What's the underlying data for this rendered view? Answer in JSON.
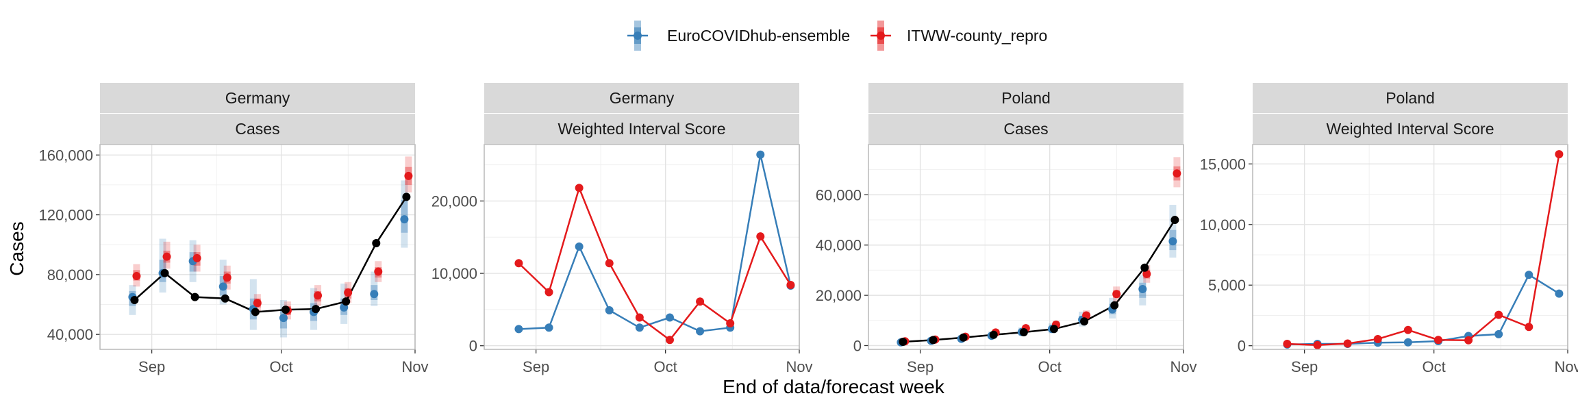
{
  "legend": {
    "placement": "top",
    "items": [
      {
        "name": "EuroCOVIDhub-ensemble",
        "color": "#377EB8"
      },
      {
        "name": "ITWW-county_repro",
        "color": "#E41A1C"
      }
    ]
  },
  "x_axis_title": "End of data/forecast week",
  "observed_color": "#000000",
  "chart_data": [
    {
      "type": "line",
      "strip_top": "Germany",
      "strip_bottom": "Cases",
      "ylabel": "Cases",
      "ylim": [
        30000,
        167000
      ],
      "yticks": [
        40000,
        80000,
        120000,
        160000
      ],
      "ytick_labels": [
        "40,000",
        "80,000",
        "120,000",
        "160,000"
      ],
      "x_dates": [
        "2021-08-28",
        "2021-09-04",
        "2021-09-11",
        "2021-09-18",
        "2021-09-25",
        "2021-10-02",
        "2021-10-09",
        "2021-10-16",
        "2021-10-23",
        "2021-10-30"
      ],
      "xlim": [
        "2021-08-20",
        "2021-11-01"
      ],
      "xticks": [
        "2021-09-01",
        "2021-10-01",
        "2021-11-01"
      ],
      "xtick_labels": [
        "Sep",
        "Oct",
        "Nov"
      ],
      "grid": true,
      "observed": [
        63000,
        81000,
        65000,
        64000,
        55000,
        56500,
        57000,
        62000,
        101000,
        132000
      ],
      "series": [
        {
          "name": "EuroCOVIDhub-ensemble",
          "median": [
            65000,
            81000,
            89000,
            72000,
            57000,
            51000,
            55000,
            58000,
            67000,
            117000
          ],
          "lower90": [
            53000,
            68000,
            75000,
            60000,
            43000,
            38000,
            43000,
            47000,
            59000,
            98000
          ],
          "upper90": [
            73000,
            104000,
            103000,
            90000,
            77000,
            63000,
            71000,
            74000,
            82000,
            143000
          ],
          "lower50": [
            59000,
            75000,
            82000,
            66000,
            50000,
            44000,
            49000,
            53000,
            63000,
            108000
          ],
          "upper50": [
            69000,
            90000,
            95000,
            79000,
            64000,
            57000,
            61000,
            64000,
            73000,
            130000
          ]
        },
        {
          "name": "ITWW-county_repro",
          "median": [
            79000,
            92000,
            91000,
            78000,
            61000,
            56000,
            66000,
            68000,
            82000,
            146000
          ],
          "lower90": [
            72000,
            84000,
            82000,
            70000,
            55000,
            50000,
            59000,
            61000,
            75000,
            135000
          ],
          "upper90": [
            87000,
            102000,
            100000,
            86000,
            67000,
            62000,
            73000,
            75000,
            89000,
            159000
          ],
          "lower50": [
            76000,
            88000,
            86000,
            74000,
            58000,
            53000,
            62000,
            64000,
            78000,
            140000
          ],
          "upper50": [
            83000,
            96000,
            95000,
            82000,
            64000,
            59000,
            69000,
            71000,
            85000,
            152000
          ]
        }
      ]
    },
    {
      "type": "line",
      "strip_top": "Germany",
      "strip_bottom": "Weighted Interval Score",
      "ylabel": "",
      "ylim": [
        -500,
        27800
      ],
      "yticks": [
        0,
        10000,
        20000
      ],
      "ytick_labels": [
        "0",
        "10,000",
        "20,000"
      ],
      "x_dates": [
        "2021-08-28",
        "2021-09-04",
        "2021-09-11",
        "2021-09-18",
        "2021-09-25",
        "2021-10-02",
        "2021-10-09",
        "2021-10-16",
        "2021-10-23",
        "2021-10-30"
      ],
      "xlim": [
        "2021-08-20",
        "2021-11-01"
      ],
      "xticks": [
        "2021-09-01",
        "2021-10-01",
        "2021-11-01"
      ],
      "xtick_labels": [
        "Sep",
        "Oct",
        "Nov"
      ],
      "grid": true,
      "series": [
        {
          "name": "EuroCOVIDhub-ensemble",
          "values": [
            2300,
            2500,
            13700,
            4900,
            2500,
            3900,
            2000,
            2500,
            26400,
            8300
          ]
        },
        {
          "name": "ITWW-county_repro",
          "values": [
            11400,
            7400,
            21800,
            11400,
            3900,
            800,
            6100,
            3100,
            15100,
            8400
          ]
        }
      ]
    },
    {
      "type": "line",
      "strip_top": "Poland",
      "strip_bottom": "Cases",
      "ylabel": "",
      "ylim": [
        -1500,
        80000
      ],
      "yticks": [
        0,
        20000,
        40000,
        60000
      ],
      "ytick_labels": [
        "0",
        "20,000",
        "40,000",
        "60,000"
      ],
      "x_dates": [
        "2021-08-28",
        "2021-09-04",
        "2021-09-11",
        "2021-09-18",
        "2021-09-25",
        "2021-10-02",
        "2021-10-09",
        "2021-10-16",
        "2021-10-23",
        "2021-10-30"
      ],
      "xlim": [
        "2021-08-20",
        "2021-11-01"
      ],
      "xticks": [
        "2021-09-01",
        "2021-10-01",
        "2021-11-01"
      ],
      "xtick_labels": [
        "Sep",
        "Oct",
        "Nov"
      ],
      "grid": true,
      "observed": [
        1500,
        2200,
        3200,
        4300,
        5300,
        6600,
        9600,
        16000,
        31000,
        50000
      ],
      "series": [
        {
          "name": "EuroCOVIDhub-ensemble",
          "median": [
            1300,
            1900,
            2700,
            3900,
            5400,
            6600,
            10300,
            14400,
            22500,
            41500
          ],
          "lower90": [
            700,
            1100,
            1700,
            2700,
            3900,
            4900,
            7600,
            10800,
            16000,
            35000
          ],
          "upper90": [
            2200,
            3000,
            4000,
            5600,
            7200,
            8800,
            13500,
            19000,
            28000,
            56000
          ],
          "lower50": [
            1000,
            1500,
            2200,
            3300,
            4600,
            5700,
            8900,
            12500,
            19000,
            38000
          ],
          "upper50": [
            1700,
            2400,
            3300,
            4700,
            6300,
            7600,
            11800,
            16600,
            25000,
            46000
          ]
        },
        {
          "name": "ITWW-county_repro",
          "median": [
            1700,
            2400,
            3500,
            5200,
            6900,
            8300,
            12000,
            20500,
            28500,
            68500
          ],
          "lower90": [
            1200,
            1700,
            2600,
            4000,
            5500,
            6700,
            10000,
            17500,
            25000,
            63000
          ],
          "upper90": [
            2300,
            3100,
            4400,
            6400,
            8300,
            9900,
            14000,
            23500,
            32000,
            75000
          ],
          "lower50": [
            1450,
            2050,
            3050,
            4600,
            6200,
            7500,
            11000,
            19000,
            26700,
            65700
          ],
          "upper50": [
            2000,
            2750,
            3950,
            5800,
            7600,
            9100,
            13000,
            22000,
            30200,
            71300
          ]
        }
      ]
    },
    {
      "type": "line",
      "strip_top": "Poland",
      "strip_bottom": "Weighted Interval Score",
      "ylabel": "",
      "ylim": [
        -300,
        16600
      ],
      "yticks": [
        0,
        5000,
        10000,
        15000
      ],
      "ytick_labels": [
        "0",
        "5,000",
        "10,000",
        "15,000"
      ],
      "x_dates": [
        "2021-08-28",
        "2021-09-04",
        "2021-09-11",
        "2021-09-18",
        "2021-09-25",
        "2021-10-02",
        "2021-10-09",
        "2021-10-16",
        "2021-10-23",
        "2021-10-30"
      ],
      "xlim": [
        "2021-08-20",
        "2021-11-01"
      ],
      "xticks": [
        "2021-09-01",
        "2021-10-01",
        "2021-11-01"
      ],
      "xtick_labels": [
        "Sep",
        "Oct",
        "Nov"
      ],
      "grid": true,
      "series": [
        {
          "name": "EuroCOVIDhub-ensemble",
          "values": [
            100,
            150,
            150,
            250,
            280,
            380,
            800,
            950,
            5850,
            4300
          ]
        },
        {
          "name": "ITWW-county_repro",
          "values": [
            150,
            50,
            180,
            550,
            1300,
            480,
            450,
            2550,
            1550,
            15800
          ]
        }
      ]
    }
  ]
}
